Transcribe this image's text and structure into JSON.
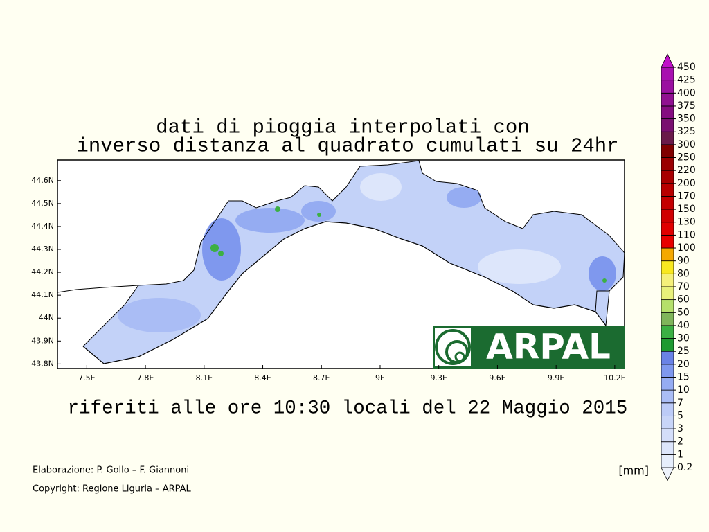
{
  "title": [
    "dati di pioggia interpolati con",
    "inverso distanza al quadrato cumulati su 24hr"
  ],
  "subtitle": "riferiti alle ore 10:30 locali del 22 Maggio 2015",
  "map": {
    "xlim": [
      7.35,
      10.25
    ],
    "ylim": [
      43.78,
      44.69
    ],
    "xticks": [
      {
        "value": 7.5,
        "label": "7.5E"
      },
      {
        "value": 7.8,
        "label": "7.8E"
      },
      {
        "value": 8.1,
        "label": "8.1E"
      },
      {
        "value": 8.4,
        "label": "8.4E"
      },
      {
        "value": 8.7,
        "label": "8.7E"
      },
      {
        "value": 9,
        "label": "9E"
      },
      {
        "value": 9.3,
        "label": "9.3E"
      },
      {
        "value": 9.6,
        "label": "9.6E"
      },
      {
        "value": 9.9,
        "label": "9.9E"
      },
      {
        "value": 10.2,
        "label": "10.2E"
      }
    ],
    "yticks": [
      {
        "value": 43.8,
        "label": "43.8N"
      },
      {
        "value": 43.9,
        "label": "43.9N"
      },
      {
        "value": 44,
        "label": "44N"
      },
      {
        "value": 44.1,
        "label": "44.1N"
      },
      {
        "value": 44.2,
        "label": "44.2N"
      },
      {
        "value": 44.3,
        "label": "44.3N"
      },
      {
        "value": 44.4,
        "label": "44.4N"
      },
      {
        "value": 44.5,
        "label": "44.5N"
      },
      {
        "value": 44.6,
        "label": "44.6N"
      }
    ]
  },
  "logo": "ARPAL",
  "credits": [
    "Elaborazione: P. Gollo – F. Giannoni",
    "Copyright: Regione Liguria – ARPAL"
  ],
  "colorbar": {
    "unit": "[mm]",
    "levels": [
      0.2,
      1,
      2,
      3,
      5,
      7,
      10,
      15,
      20,
      25,
      30,
      40,
      50,
      60,
      70,
      80,
      90,
      100,
      110,
      130,
      150,
      170,
      200,
      220,
      250,
      300,
      325,
      350,
      375,
      400,
      425,
      450
    ],
    "colors": [
      "#eef3fc",
      "#e6eefc",
      "#dde6fb",
      "#d4def9",
      "#c8d5f8",
      "#bccbf7",
      "#aabdf5",
      "#95acf2",
      "#7f98ee",
      "#6a82e6",
      "#1e9a2f",
      "#3cb043",
      "#7fb55a",
      "#b5e06a",
      "#e8f07a",
      "#f5f07a",
      "#f8e820",
      "#f5a800",
      "#e80000",
      "#e00000",
      "#d00000",
      "#c40000",
      "#b80000",
      "#a80000",
      "#9a0000",
      "#800000",
      "#6a1a4a",
      "#7a1070",
      "#850c80",
      "#901090",
      "#9a10a0",
      "#a810b0",
      "#c010c8"
    ]
  }
}
